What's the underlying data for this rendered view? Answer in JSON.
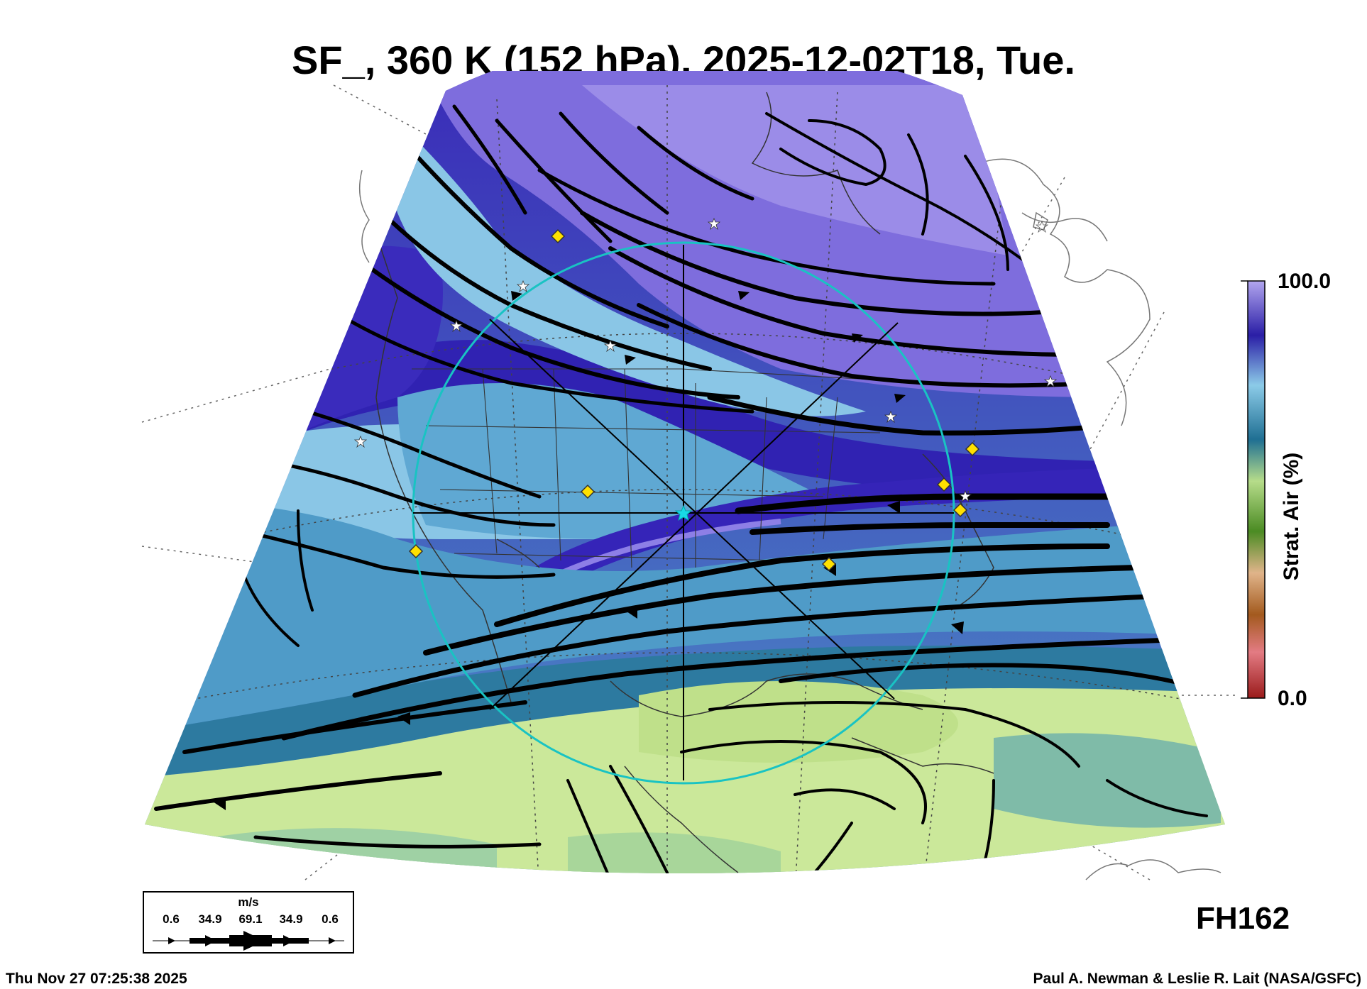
{
  "title": "SF_, 360 K (152 hPa), 2025-12-02T18, Tue.",
  "colorbar": {
    "max_label": "100.0",
    "min_label": "0.0",
    "title": "Strat. Air (%)",
    "colors": [
      "#9a1b1b",
      "#e37b83",
      "#a35a1e",
      "#e0b48a",
      "#4b8b23",
      "#b6dc8a",
      "#1f6f93",
      "#8ccbe8",
      "#2a1ea6",
      "#a89ae8"
    ]
  },
  "forecast_hour": "FH162",
  "timestamp": "Thu Nov 27 07:25:38 2025",
  "credit": "Paul A. Newman & Leslie R. Lait (NASA/GSFC)",
  "wind_legend": {
    "unit": "m/s",
    "values": [
      "0.6",
      "34.9",
      "69.1",
      "34.9",
      "0.6"
    ]
  },
  "colors": {
    "high_strat": "#8d7fe6",
    "deep_purple": "#3524b8",
    "light_blue": "#8ac6e6",
    "mid_blue": "#4f9bc8",
    "dark_teal": "#2d7aa0",
    "pale_green": "#cbe89a",
    "range_ring": "#19c3c3",
    "marker_diamond": "#ffe000"
  }
}
